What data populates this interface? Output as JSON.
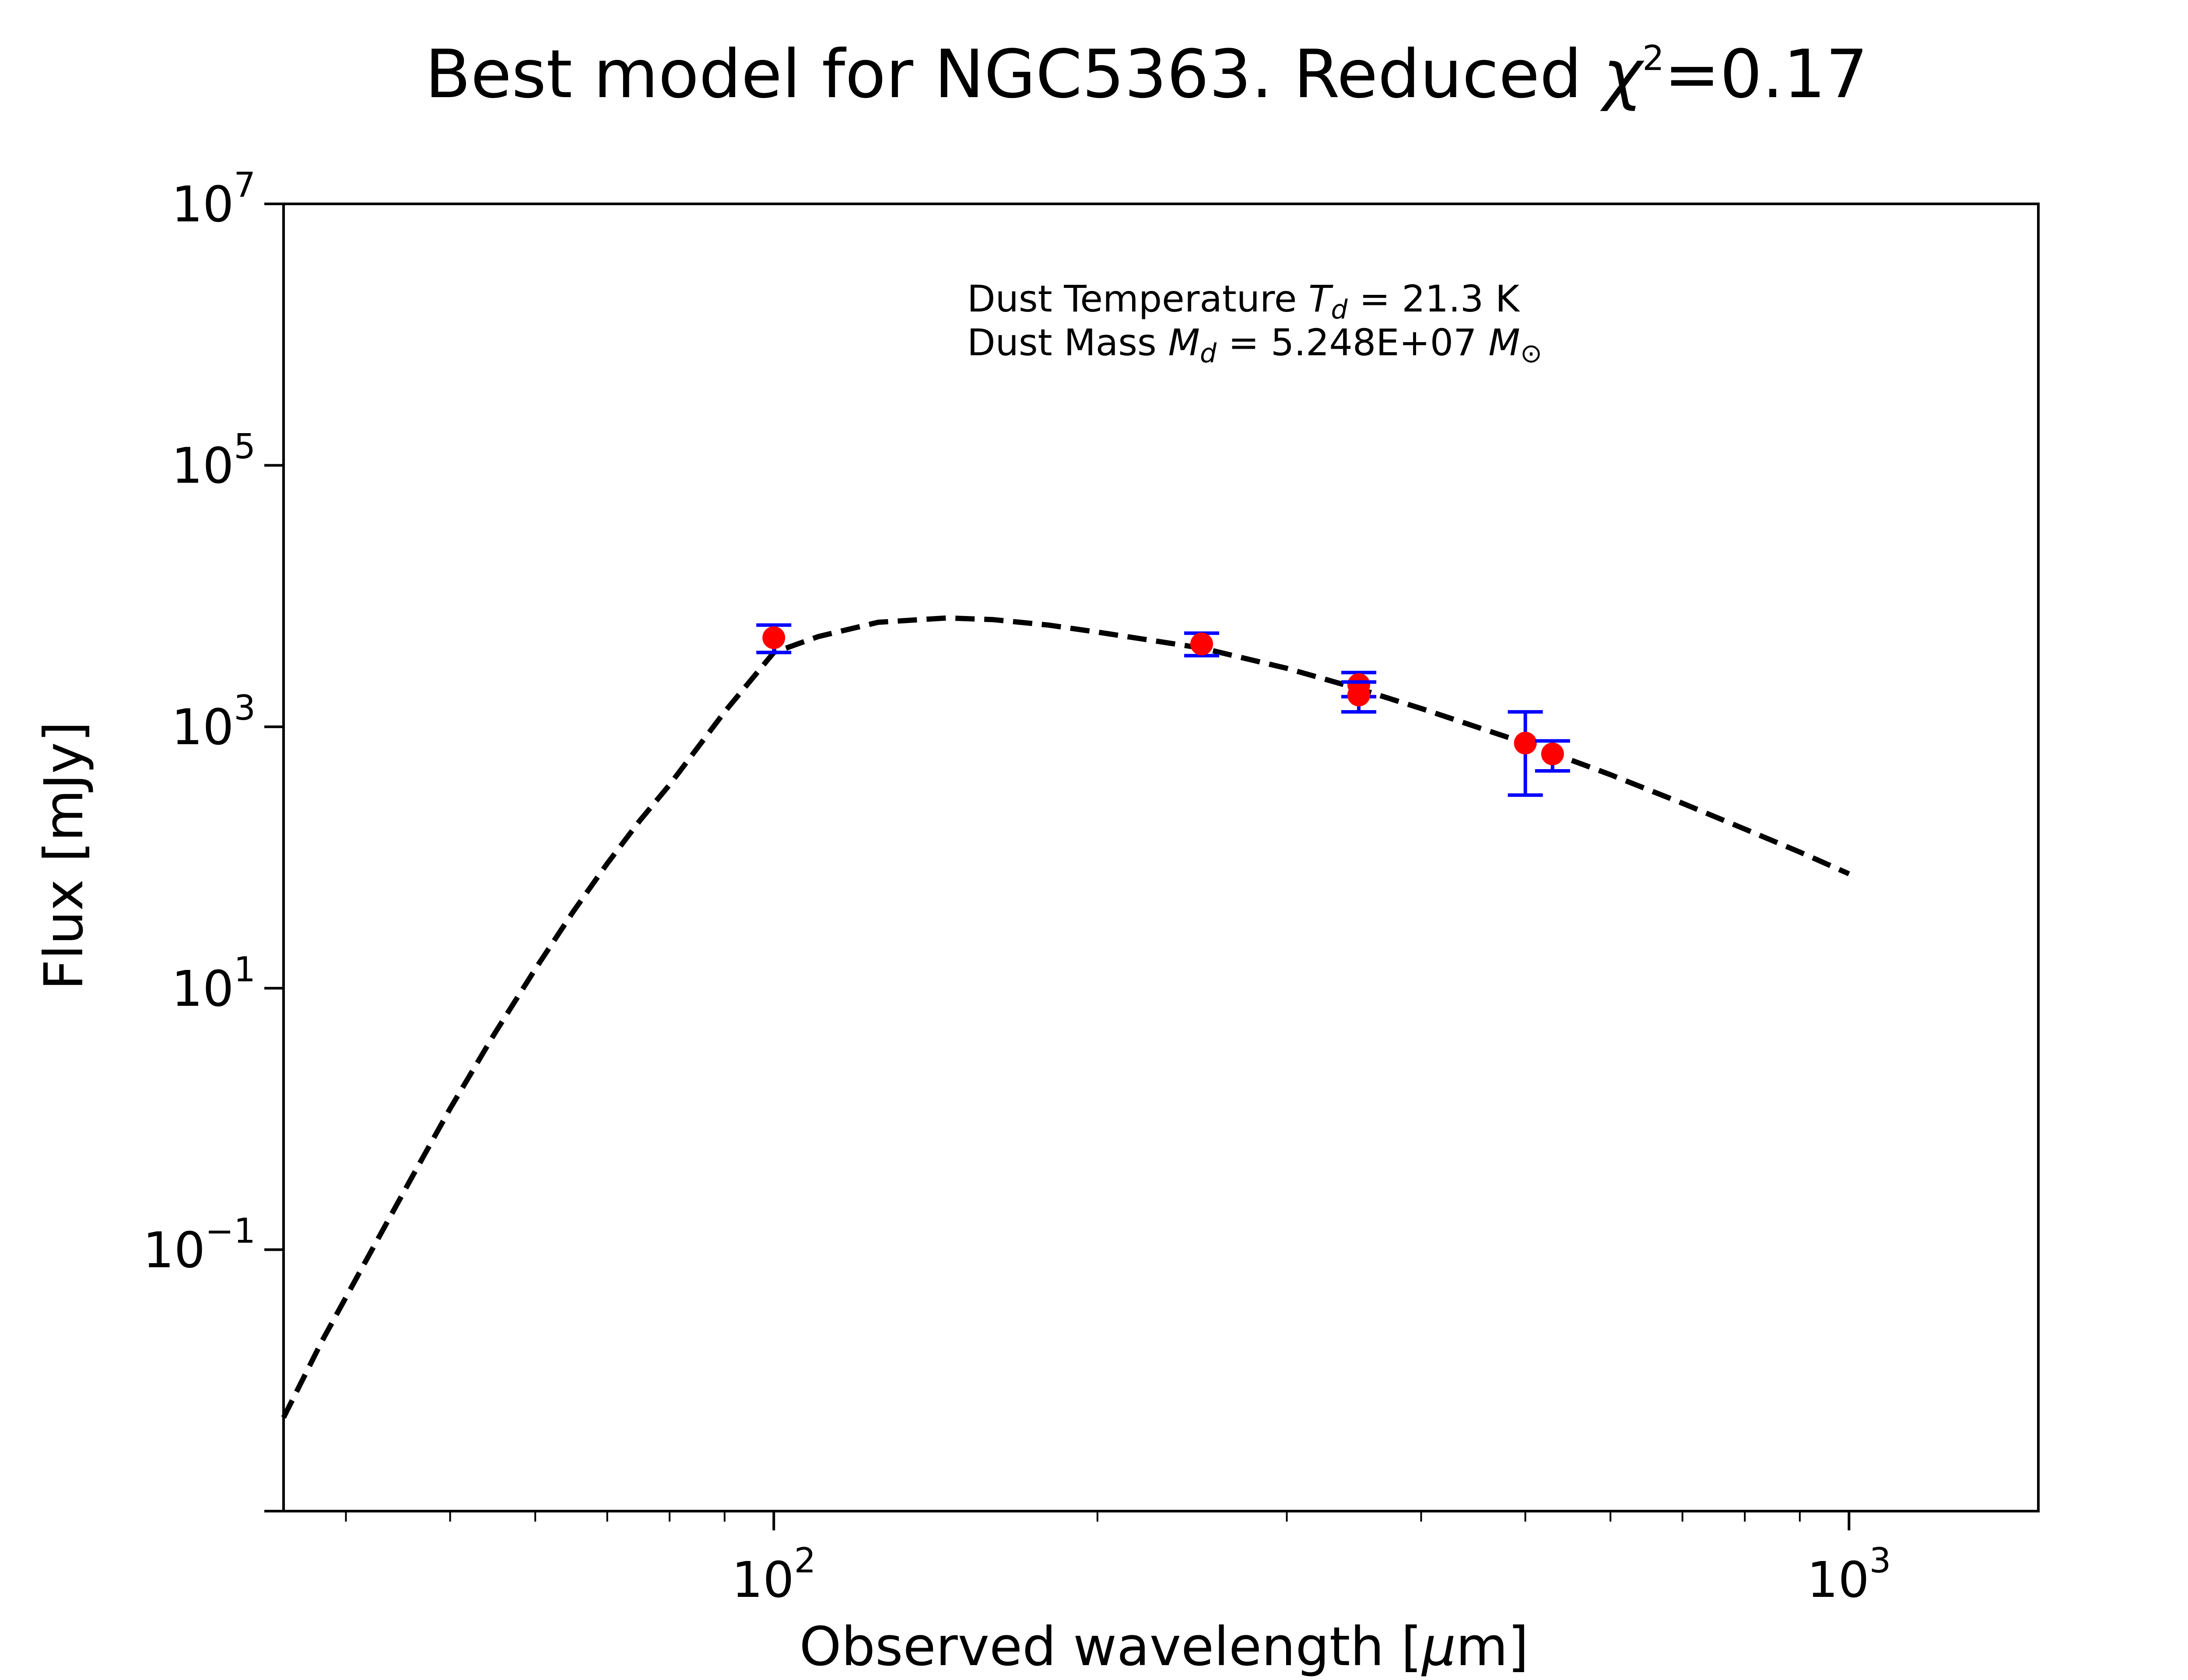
{
  "chart_data": {
    "type": "scatter",
    "title": {
      "main": "Best model for NGC5363. Reduced ",
      "chi": "χ",
      "chi_exp": "2",
      "value": "=0.17"
    },
    "xlabel": {
      "prefix": "Observed wavelength [",
      "mu": "μ",
      "suffix": "m]"
    },
    "ylabel": "Flux [mJy]",
    "xscale": "log",
    "yscale": "log",
    "xlim": [
      35,
      1500
    ],
    "ylim": [
      0.001,
      10000000
    ],
    "grid": false,
    "xticks": [
      {
        "value": 100,
        "base": "10",
        "exp": "2"
      },
      {
        "value": 1000,
        "base": "10",
        "exp": "3"
      }
    ],
    "yticks": [
      {
        "value": 10000000,
        "base": "10",
        "exp": "7"
      },
      {
        "value": 100000,
        "base": "10",
        "exp": "5"
      },
      {
        "value": 1000,
        "base": "10",
        "exp": "3"
      },
      {
        "value": 10,
        "base": "10",
        "exp": "1"
      },
      {
        "value": 0.1,
        "base": "10",
        "exp": "−1"
      }
    ],
    "x_minor_ticks": [
      40,
      50,
      60,
      70,
      80,
      90,
      200,
      300,
      400,
      500,
      600,
      700,
      800,
      900
    ],
    "y_minor_ticks": [
      0.001
    ],
    "model_curve": {
      "style": "dashed",
      "color": "#000000",
      "x": [
        35,
        38,
        42,
        46,
        50,
        55,
        60,
        65,
        70,
        75,
        80,
        90,
        100,
        110,
        125,
        145,
        160,
        180,
        200,
        250,
        300,
        350,
        400,
        450,
        500,
        550,
        600,
        700,
        800,
        900,
        1000
      ],
      "y": [
        0.0052,
        0.02,
        0.09,
        0.35,
        1.2,
        4.5,
        14,
        38,
        90,
        190,
        360,
        1300,
        3700,
        4900,
        6300,
        6800,
        6600,
        6000,
        5300,
        4000,
        2800,
        1950,
        1380,
        1000,
        750,
        560,
        430,
        260,
        165,
        110,
        75
      ]
    },
    "observations": {
      "marker_color": "#ff0000",
      "errorbar_color": "#0000ff",
      "points": [
        {
          "x": 100,
          "y": 4800,
          "ylow": 3700,
          "yhigh": 6000
        },
        {
          "x": 250,
          "y": 4300,
          "ylow": 3500,
          "yhigh": 5200
        },
        {
          "x": 350,
          "y": 2100,
          "ylow": 1700,
          "yhigh": 2600
        },
        {
          "x": 350,
          "y": 1750,
          "ylow": 1300,
          "yhigh": 2200
        },
        {
          "x": 500,
          "y": 750,
          "ylow": 300,
          "yhigh": 1300
        },
        {
          "x": 530,
          "y": 620,
          "ylow": 460,
          "yhigh": 780
        }
      ]
    },
    "annotation": {
      "line1_prefix": "Dust Temperature ",
      "line1_symbol": "T",
      "line1_sub": "d",
      "line1_value": " = 21.3 K",
      "line2_prefix": "Dust Mass ",
      "line2_symbol": "M",
      "line2_sub": "d",
      "line2_value": " = 5.248E+07 ",
      "line2_unit": "M",
      "line2_unit_sub": "⊙"
    }
  }
}
